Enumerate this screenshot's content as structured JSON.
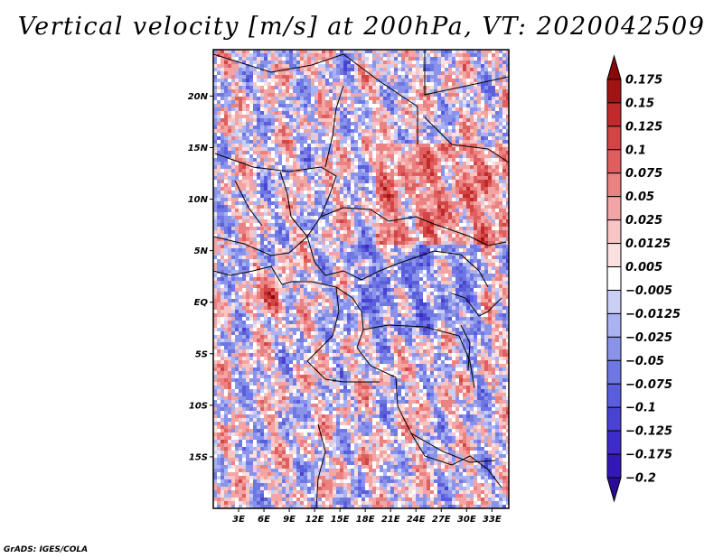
{
  "chart_data": {
    "type": "heatmap",
    "title": "Vertical velocity [m/s] at 200hPa, VT: 2020042509",
    "variable": "Vertical velocity",
    "units": "m/s",
    "level": "200hPa",
    "valid_time": "2020042509",
    "lon_range": [
      0,
      35
    ],
    "lat_range": [
      -20,
      24.5
    ],
    "lon_ticks": [
      3,
      6,
      9,
      12,
      15,
      18,
      21,
      24,
      27,
      30,
      33
    ],
    "lon_tick_labels": [
      "3E",
      "6E",
      "9E",
      "12E",
      "15E",
      "18E",
      "21E",
      "24E",
      "27E",
      "30E",
      "33E"
    ],
    "lat_ticks": [
      20,
      15,
      10,
      5,
      0,
      -5,
      -10,
      -15
    ],
    "lat_tick_labels": [
      "20N",
      "15N",
      "10N",
      "5N",
      "EQ",
      "5S",
      "10S",
      "15S"
    ],
    "colorbar": {
      "levels": [
        -0.2,
        -0.175,
        -0.125,
        -0.1,
        -0.075,
        -0.05,
        -0.025,
        -0.0125,
        -0.005,
        0.005,
        0.0125,
        0.025,
        0.05,
        0.075,
        0.1,
        0.125,
        0.15,
        0.175
      ],
      "level_labels": [
        "−0.2",
        "−0.175",
        "−0.125",
        "−0.1",
        "−0.075",
        "−0.05",
        "−0.025",
        "−0.0125",
        "−0.005",
        "0.005",
        "0.0125",
        "0.025",
        "0.05",
        "0.075",
        "0.1",
        "0.125",
        "0.15",
        "0.175"
      ],
      "colors": [
        "#2b0c96",
        "#3318b5",
        "#3d2cc7",
        "#4a43d2",
        "#5b5edb",
        "#6f78e2",
        "#8a93ea",
        "#aab2f1",
        "#cacff7",
        "#ffffff",
        "#fbe0e0",
        "#f8c5c5",
        "#f3a4a4",
        "#eb8282",
        "#df5f5f",
        "#d24545",
        "#c02a2a",
        "#a11414",
        "#8a0a0a"
      ]
    },
    "features": [
      {
        "name": "positive band north-east",
        "lon": 28,
        "lat": 14,
        "sign": "upward"
      },
      {
        "name": "strong upward core near Gabon",
        "lon": 7.5,
        "lat": -1,
        "sign": "upward"
      },
      {
        "name": "downward area central Congo",
        "lon": 22,
        "lat": 2,
        "sign": "downward"
      }
    ]
  },
  "credit": "GrADS: IGES/COLA"
}
